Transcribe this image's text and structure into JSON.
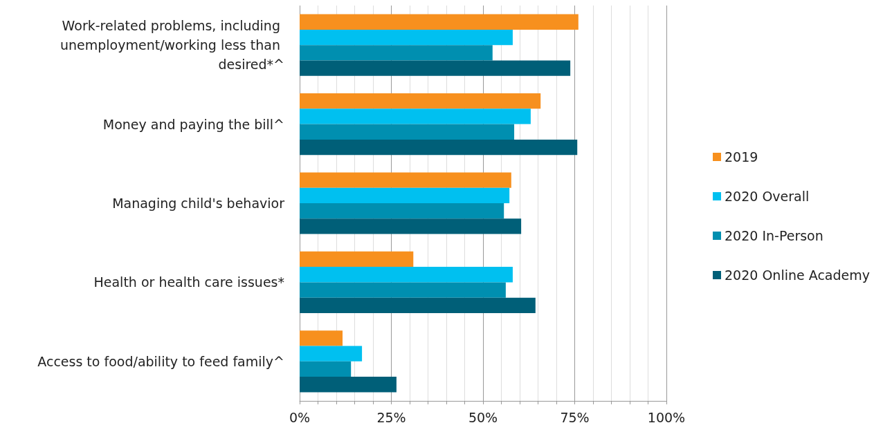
{
  "chart_data": {
    "type": "bar",
    "orientation": "horizontal",
    "categories": [
      "Work-related problems, including unemployment/working less than desired*^",
      "Money and paying the bill^",
      "Managing child's behavior",
      "Health or health care issues*",
      "Access to food/ability to feed family^"
    ],
    "series": [
      {
        "name": "2019",
        "color": "#f7901e",
        "values": [
          76,
          65.7,
          57.7,
          31,
          11.7
        ]
      },
      {
        "name": "2020 Overall",
        "color": "#00c0f0",
        "values": [
          58.1,
          63,
          57.2,
          58.1,
          17
        ]
      },
      {
        "name": "2020 In-Person",
        "color": "#008fb0",
        "values": [
          52.6,
          58.5,
          55.7,
          56.2,
          14
        ]
      },
      {
        "name": "2020 Online Academy",
        "color": "#005f78",
        "values": [
          73.8,
          75.7,
          60.4,
          64.3,
          26.4
        ]
      }
    ],
    "xlim": [
      0,
      100
    ],
    "xticks": [
      {
        "value": 0,
        "label": "0%"
      },
      {
        "value": 5,
        "label": null
      },
      {
        "value": 10,
        "label": null
      },
      {
        "value": 15,
        "label": null
      },
      {
        "value": 20,
        "label": null
      },
      {
        "value": 25,
        "label": "25%"
      },
      {
        "value": 30,
        "label": null
      },
      {
        "value": 35,
        "label": null
      },
      {
        "value": 40,
        "label": null
      },
      {
        "value": 45,
        "label": null
      },
      {
        "value": 50,
        "label": "50%"
      },
      {
        "value": 55,
        "label": null
      },
      {
        "value": 60,
        "label": null
      },
      {
        "value": 65,
        "label": null
      },
      {
        "value": 70,
        "label": null
      },
      {
        "value": 75,
        "label": "75%"
      },
      {
        "value": 80,
        "label": null
      },
      {
        "value": 85,
        "label": null
      },
      {
        "value": 90,
        "label": null
      },
      {
        "value": 95,
        "label": null
      },
      {
        "value": 100,
        "label": "100%"
      }
    ],
    "grid": "x",
    "legend": "right"
  }
}
